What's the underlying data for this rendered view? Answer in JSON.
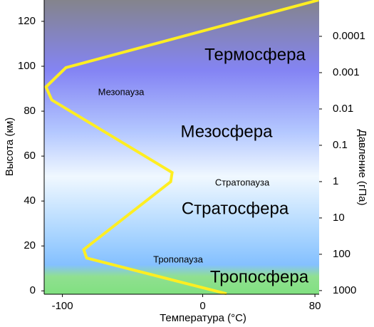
{
  "chart_data": {
    "type": "line",
    "x_label": "Температура (°C)",
    "y_label": "Высота (км)",
    "y2_label": "Давление (гПа)",
    "series": [
      {
        "name": "Температура",
        "color": "#ffee22",
        "x": [
          17,
          -82.7,
          -84.8,
          -22.8,
          -21.8,
          -107.6,
          -111.7,
          -97.5,
          82.7
        ],
        "values": [
          -1.3,
          14.6,
          18.4,
          48.6,
          52.7,
          85,
          90.8,
          99.4,
          129.5
        ]
      }
    ],
    "xlim": [
      -113,
      83
    ],
    "xticks": [
      -100,
      0,
      80
    ],
    "ylim": [
      -1.5,
      129.5
    ],
    "yticks": [
      0,
      20,
      40,
      60,
      80,
      100,
      120
    ],
    "y2lim": [
      1259,
      1e-05
    ],
    "y2ticks": [
      1000,
      100,
      10,
      1,
      0.1,
      0.01,
      0.001,
      0.0001
    ],
    "y2_log": true,
    "annotations": [
      "Термосфера",
      "Мезосфера",
      "Стратосфера",
      "Тропосфера",
      "Мезопауза",
      "Стратопауза",
      "Тропопауза"
    ]
  }
}
